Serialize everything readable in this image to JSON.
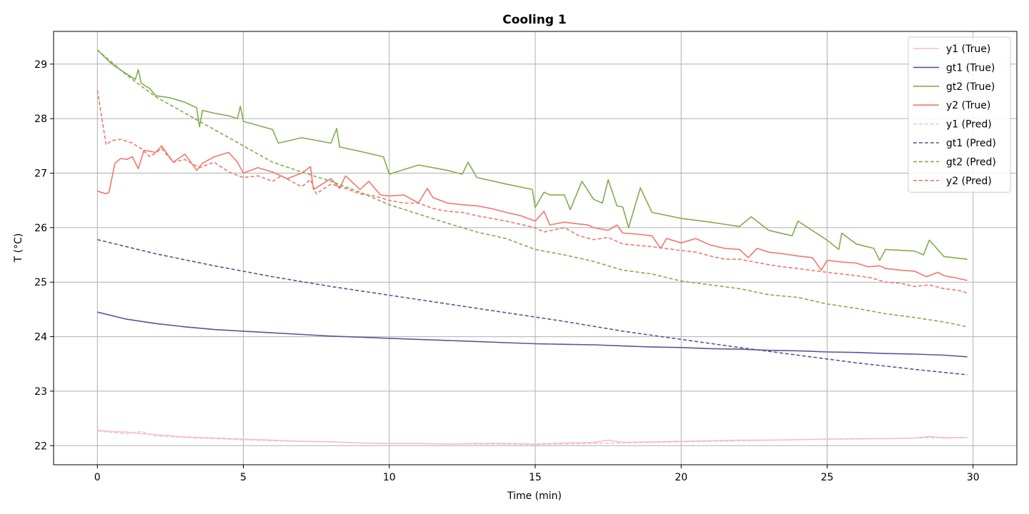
{
  "chart_data": {
    "type": "line",
    "title": "Cooling 1",
    "xlabel": "Time (min)",
    "ylabel": "T (°C)",
    "xlim": [
      -1.5,
      31.5
    ],
    "ylim": [
      21.65,
      29.6
    ],
    "xticks": [
      0,
      5,
      10,
      15,
      20,
      25,
      30
    ],
    "yticks": [
      22,
      23,
      24,
      25,
      26,
      27,
      28,
      29
    ],
    "grid": true,
    "legend_position": "top-right",
    "series": [
      {
        "name": "y1 (True)",
        "color": "#f4c2c8",
        "dash": "solid",
        "x": [
          0,
          0.5,
          1,
          1.5,
          2,
          2.5,
          3,
          3.5,
          4,
          5,
          6,
          7,
          8,
          9,
          10,
          11,
          12,
          13,
          14,
          15,
          16,
          17,
          17.5,
          18,
          19,
          20,
          21,
          22,
          23,
          24,
          25,
          26,
          27,
          28,
          28.5,
          29,
          29.8
        ],
        "y": [
          22.28,
          22.26,
          22.25,
          22.22,
          22.2,
          22.18,
          22.16,
          22.15,
          22.14,
          22.12,
          22.1,
          22.08,
          22.07,
          22.05,
          22.04,
          22.04,
          22.03,
          22.04,
          22.04,
          22.03,
          22.05,
          22.06,
          22.1,
          22.06,
          22.07,
          22.08,
          22.09,
          22.1,
          22.1,
          22.11,
          22.12,
          22.13,
          22.13,
          22.14,
          22.17,
          22.14,
          22.15
        ]
      },
      {
        "name": "gt1 (True)",
        "color": "#5b5595",
        "dash": "solid",
        "x": [
          0,
          1,
          2,
          3,
          4,
          5,
          6,
          7,
          8,
          9,
          10,
          11,
          12,
          13,
          14,
          15,
          16,
          17,
          18,
          19,
          20,
          21,
          22,
          23,
          24,
          25,
          26,
          27,
          28,
          29,
          29.8
        ],
        "y": [
          24.45,
          24.32,
          24.24,
          24.18,
          24.13,
          24.1,
          24.07,
          24.04,
          24.01,
          23.99,
          23.97,
          23.95,
          23.93,
          23.91,
          23.89,
          23.87,
          23.86,
          23.85,
          23.83,
          23.81,
          23.8,
          23.78,
          23.77,
          23.75,
          23.74,
          23.72,
          23.71,
          23.69,
          23.68,
          23.66,
          23.63
        ]
      },
      {
        "name": "gt2 (True)",
        "color": "#83ac4d",
        "dash": "solid",
        "x": [
          0,
          0.5,
          1,
          1.3,
          1.4,
          1.5,
          1.8,
          2,
          2.5,
          3,
          3.4,
          3.5,
          3.6,
          4,
          4.5,
          4.8,
          4.9,
          5,
          6,
          6.2,
          7,
          8,
          8.2,
          8.3,
          9,
          9.8,
          10,
          11,
          12,
          12.5,
          12.7,
          13,
          14,
          14.9,
          15,
          15.3,
          15.5,
          16,
          16.2,
          16.6,
          17,
          17.3,
          17.5,
          17.8,
          18,
          18.2,
          18.6,
          19,
          20,
          21,
          22,
          22.4,
          23,
          23.8,
          24,
          25,
          25.4,
          25.5,
          26,
          26.6,
          26.8,
          27,
          28,
          28.3,
          28.5,
          29,
          29.8
        ],
        "y": [
          29.26,
          29.0,
          28.82,
          28.72,
          28.9,
          28.65,
          28.55,
          28.42,
          28.38,
          28.3,
          28.2,
          27.85,
          28.15,
          28.1,
          28.05,
          28.0,
          28.23,
          27.95,
          27.8,
          27.55,
          27.65,
          27.55,
          27.82,
          27.48,
          27.4,
          27.3,
          26.98,
          27.15,
          27.05,
          26.98,
          27.2,
          26.92,
          26.8,
          26.7,
          26.37,
          26.65,
          26.6,
          26.6,
          26.33,
          26.85,
          26.52,
          26.45,
          26.88,
          26.4,
          26.38,
          26.0,
          26.73,
          26.28,
          26.17,
          26.1,
          26.02,
          26.2,
          25.95,
          25.85,
          26.12,
          25.77,
          25.6,
          25.9,
          25.7,
          25.62,
          25.4,
          25.6,
          25.57,
          25.5,
          25.77,
          25.47,
          25.42
        ]
      },
      {
        "name": "y2 (True)",
        "color": "#f0776b",
        "dash": "solid",
        "x": [
          0,
          0.3,
          0.4,
          0.6,
          0.8,
          1,
          1.2,
          1.4,
          1.6,
          2,
          2.2,
          2.6,
          3,
          3.4,
          3.6,
          4,
          4.5,
          4.8,
          5,
          5.5,
          6,
          6.5,
          7,
          7.3,
          7.4,
          8,
          8.3,
          8.5,
          9,
          9.3,
          9.7,
          10,
          10.5,
          11,
          11.3,
          11.5,
          12,
          12.5,
          13,
          13.5,
          14,
          14.5,
          15,
          15.3,
          15.5,
          16,
          16.3,
          16.8,
          17,
          17.5,
          17.8,
          18,
          18.5,
          19,
          19.3,
          19.5,
          20,
          20.5,
          21,
          21.5,
          22,
          22.3,
          22.6,
          23,
          23.5,
          24,
          24.5,
          24.8,
          25,
          25.5,
          26,
          26.4,
          26.8,
          27,
          27.5,
          28,
          28.4,
          28.8,
          29,
          29.4,
          29.8
        ],
        "y": [
          26.67,
          26.62,
          26.65,
          27.18,
          27.27,
          27.25,
          27.3,
          27.08,
          27.42,
          27.38,
          27.5,
          27.2,
          27.35,
          27.05,
          27.18,
          27.3,
          27.38,
          27.2,
          27.0,
          27.1,
          27.02,
          26.9,
          27.0,
          27.12,
          26.7,
          26.9,
          26.72,
          26.95,
          26.7,
          26.85,
          26.6,
          26.58,
          26.6,
          26.45,
          26.72,
          26.55,
          26.45,
          26.42,
          26.4,
          26.35,
          26.28,
          26.22,
          26.12,
          26.3,
          26.05,
          26.1,
          26.08,
          26.05,
          26.0,
          25.95,
          26.05,
          25.9,
          25.88,
          25.85,
          25.62,
          25.8,
          25.72,
          25.8,
          25.68,
          25.62,
          25.6,
          25.45,
          25.62,
          25.55,
          25.52,
          25.48,
          25.45,
          25.22,
          25.4,
          25.37,
          25.35,
          25.28,
          25.3,
          25.25,
          25.22,
          25.2,
          25.1,
          25.18,
          25.12,
          25.08,
          25.03
        ]
      },
      {
        "name": "y1 (Pred)",
        "color": "#f4c2c8",
        "dash": "dashed",
        "x": [
          0,
          1,
          1.5,
          2,
          3,
          4,
          5,
          6,
          7,
          8,
          9,
          10,
          11,
          12,
          13,
          14,
          15,
          16,
          17,
          18,
          19,
          20,
          21,
          22,
          23,
          24,
          25,
          26,
          27,
          28,
          29,
          29.8
        ],
        "y": [
          22.27,
          22.22,
          22.26,
          22.18,
          22.15,
          22.13,
          22.11,
          22.09,
          22.08,
          22.07,
          22.05,
          22.04,
          22.04,
          22.03,
          22.03,
          22.03,
          22.02,
          22.03,
          22.04,
          22.05,
          22.06,
          22.07,
          22.08,
          22.09,
          22.1,
          22.11,
          22.12,
          22.12,
          22.13,
          22.14,
          22.15,
          22.15
        ]
      },
      {
        "name": "gt1 (Pred)",
        "color": "#5b5595",
        "dash": "dashed",
        "x": [
          0,
          2,
          4,
          6,
          8,
          10,
          12,
          14,
          16,
          18,
          20,
          22,
          24,
          26,
          28,
          29.8
        ],
        "y": [
          25.78,
          25.52,
          25.3,
          25.1,
          24.92,
          24.76,
          24.6,
          24.44,
          24.28,
          24.1,
          23.95,
          23.8,
          23.66,
          23.52,
          23.4,
          23.3
        ]
      },
      {
        "name": "gt2 (Pred)",
        "color": "#83ac4d",
        "dash": "dashed",
        "x": [
          0,
          1,
          2,
          3,
          4,
          5,
          6,
          7,
          8,
          9,
          10,
          11,
          12,
          13,
          14,
          15,
          16,
          17,
          18,
          19,
          20,
          21,
          22,
          23,
          24,
          25,
          26,
          27,
          28,
          29,
          29.8
        ],
        "y": [
          29.26,
          28.8,
          28.4,
          28.1,
          27.8,
          27.5,
          27.2,
          27.02,
          26.85,
          26.65,
          26.42,
          26.25,
          26.08,
          25.92,
          25.8,
          25.6,
          25.5,
          25.38,
          25.22,
          25.15,
          25.02,
          24.95,
          24.88,
          24.77,
          24.72,
          24.6,
          24.52,
          24.42,
          24.35,
          24.27,
          24.18
        ]
      },
      {
        "name": "y2 (Pred)",
        "color": "#f0776b",
        "dash": "dashed",
        "x": [
          0,
          0.3,
          0.5,
          0.8,
          1.2,
          1.5,
          1.8,
          2.2,
          2.6,
          3,
          3.5,
          4,
          4.5,
          5,
          5.5,
          6,
          6.3,
          7,
          7.3,
          7.5,
          8,
          8.5,
          9,
          9.5,
          10,
          10.5,
          11,
          11.5,
          12,
          12.5,
          13,
          14,
          15,
          15.3,
          16,
          16.5,
          17,
          17.5,
          18,
          19,
          20,
          20.5,
          21,
          21.5,
          22,
          23,
          23.5,
          24,
          25,
          26,
          26.5,
          27,
          27.5,
          28,
          28.5,
          29,
          29.5,
          29.8
        ],
        "y": [
          28.52,
          27.52,
          27.6,
          27.62,
          27.55,
          27.45,
          27.3,
          27.45,
          27.2,
          27.25,
          27.1,
          27.2,
          27.02,
          26.92,
          26.95,
          26.85,
          26.95,
          26.75,
          26.88,
          26.62,
          26.8,
          26.72,
          26.62,
          26.58,
          26.5,
          26.45,
          26.45,
          26.35,
          26.3,
          26.28,
          26.22,
          26.12,
          26.0,
          25.92,
          26.0,
          25.85,
          25.78,
          25.82,
          25.7,
          25.65,
          25.58,
          25.55,
          25.48,
          25.42,
          25.42,
          25.32,
          25.28,
          25.25,
          25.18,
          25.12,
          25.08,
          25.0,
          24.98,
          24.92,
          24.95,
          24.88,
          24.85,
          24.8
        ]
      }
    ]
  }
}
